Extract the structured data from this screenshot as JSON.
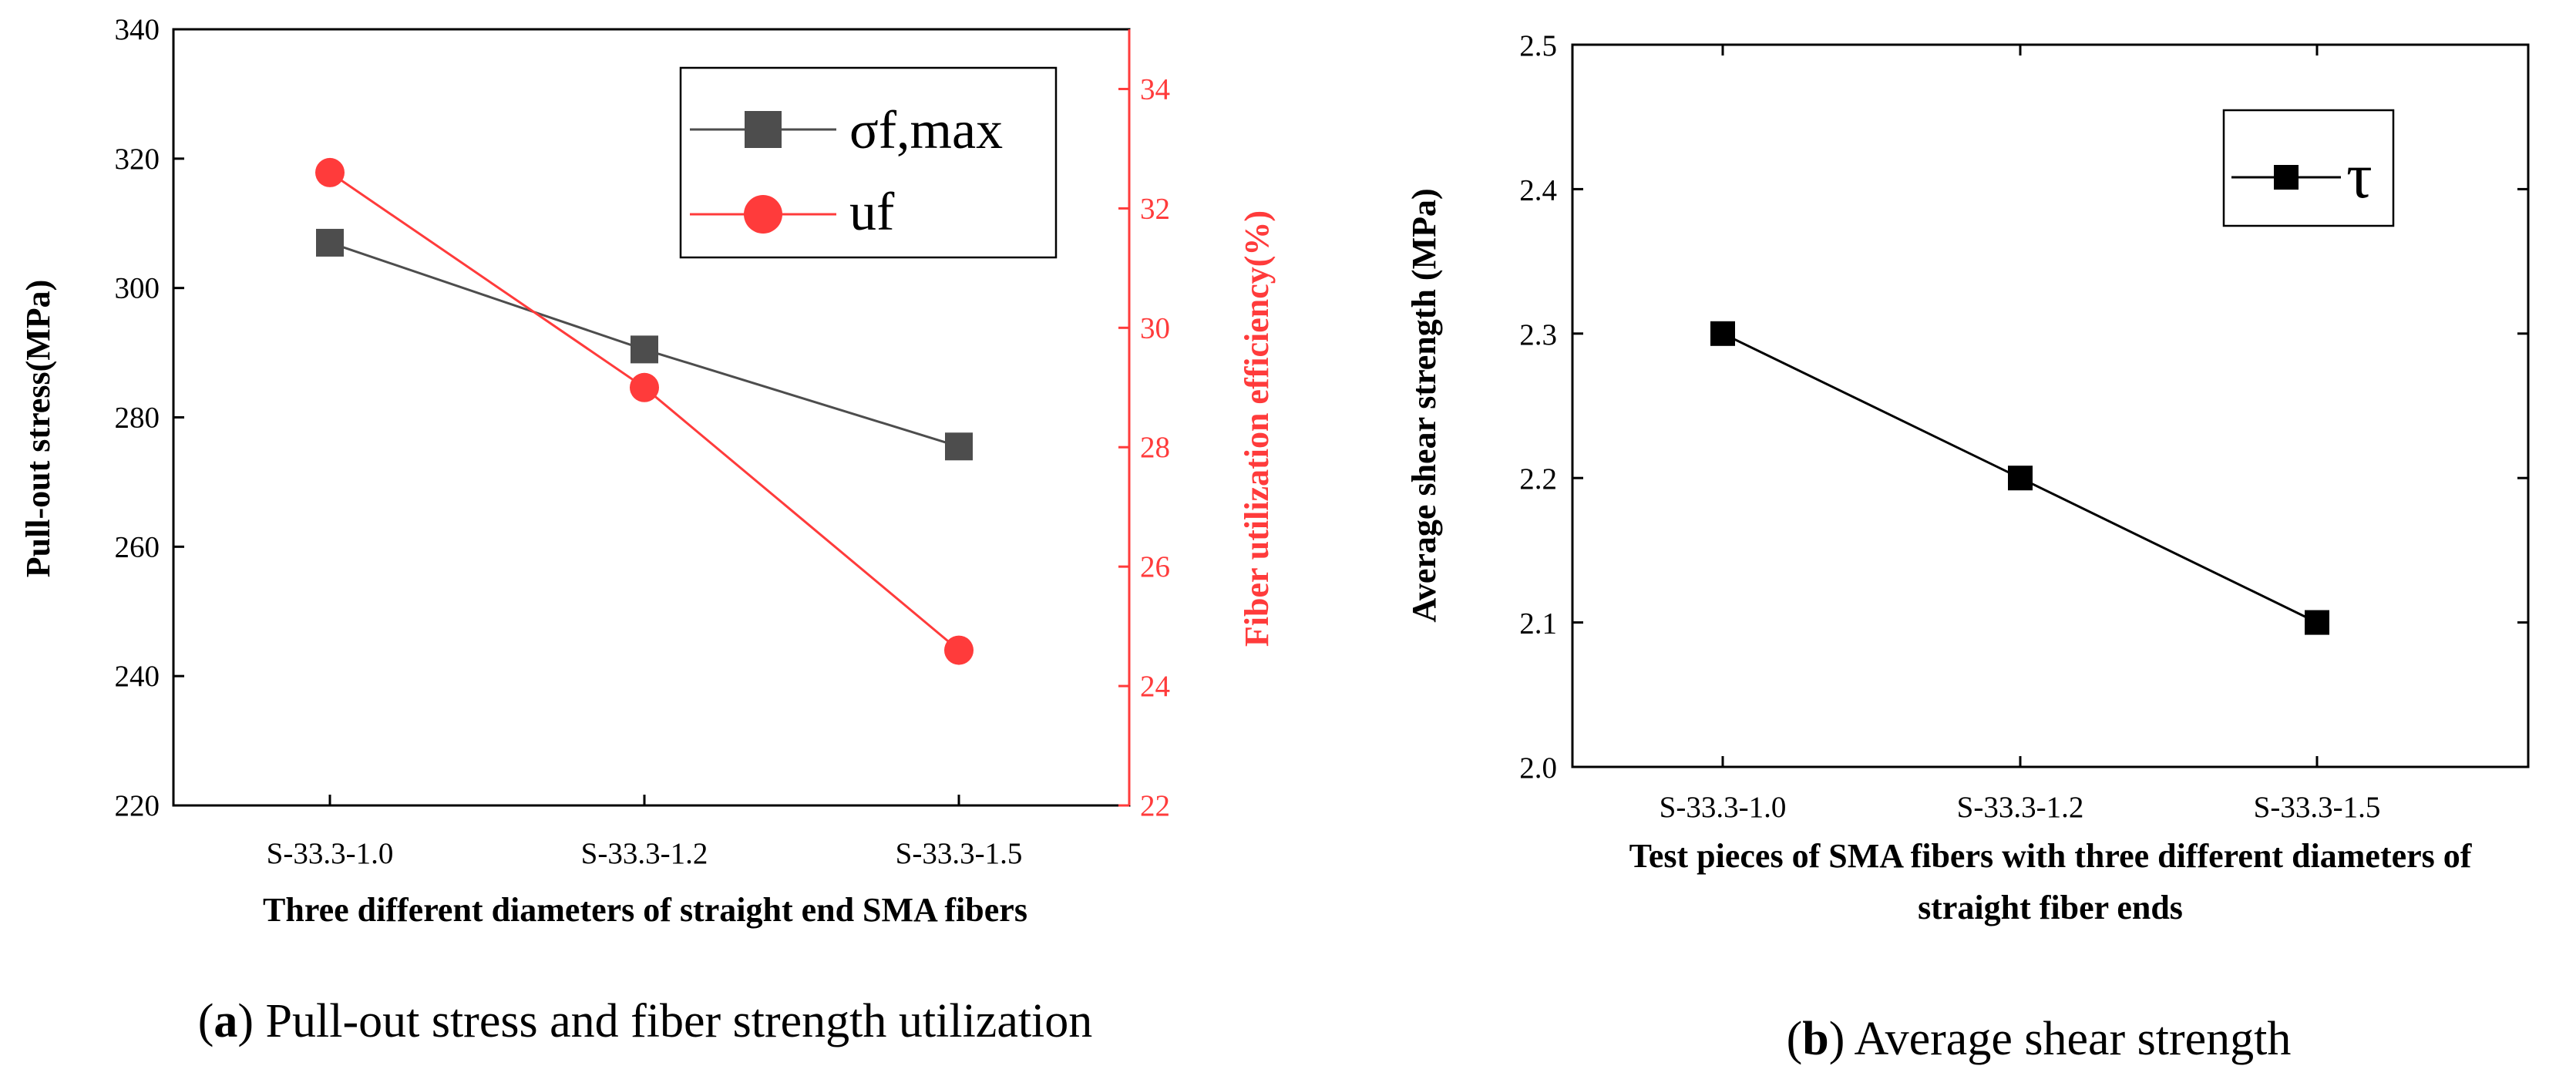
{
  "chart_data": [
    {
      "type": "line",
      "panel": "a",
      "categories": [
        "S-33.3-1.0",
        "S-33.3-1.2",
        "S-33.3-1.5"
      ],
      "series": [
        {
          "name": "σf,max",
          "axis": "left",
          "marker": "square",
          "color": "#4d4d4d",
          "values": [
            307,
            290.5,
            275.5
          ]
        },
        {
          "name": "uf",
          "axis": "right",
          "marker": "circle",
          "color": "#ff3b3b",
          "values": [
            32.6,
            29.0,
            24.6
          ]
        }
      ],
      "xlabel": "Three different diameters of straight end SMA fibers",
      "ylabel": "Pull-out stress(MPa)",
      "y2label": "Fiber utilization efficiency(%)",
      "ylim": [
        220,
        340
      ],
      "yticks": [
        220,
        240,
        260,
        280,
        300,
        320,
        340
      ],
      "y2lim": [
        22,
        35
      ],
      "y2ticks": [
        22,
        24,
        26,
        28,
        30,
        32,
        34
      ],
      "legend": "top-right",
      "caption_label": "a",
      "caption_text": "Pull-out stress and fiber strength utilization"
    },
    {
      "type": "line",
      "panel": "b",
      "categories": [
        "S-33.3-1.0",
        "S-33.3-1.2",
        "S-33.3-1.5"
      ],
      "series": [
        {
          "name": "τ",
          "marker": "square",
          "color": "#000000",
          "values": [
            2.3,
            2.2,
            2.1
          ]
        }
      ],
      "xlabel_lines": [
        "Test pieces of SMA fibers with three different diameters of",
        "straight fiber ends"
      ],
      "ylabel": "Average shear strength  (MPa)",
      "ylim": [
        2.0,
        2.5
      ],
      "yticks": [
        "2.0",
        "2.1",
        "2.2",
        "2.3",
        "2.4",
        "2.5"
      ],
      "legend": "top-right",
      "caption_label": "b",
      "caption_text": "Average shear strength"
    }
  ]
}
